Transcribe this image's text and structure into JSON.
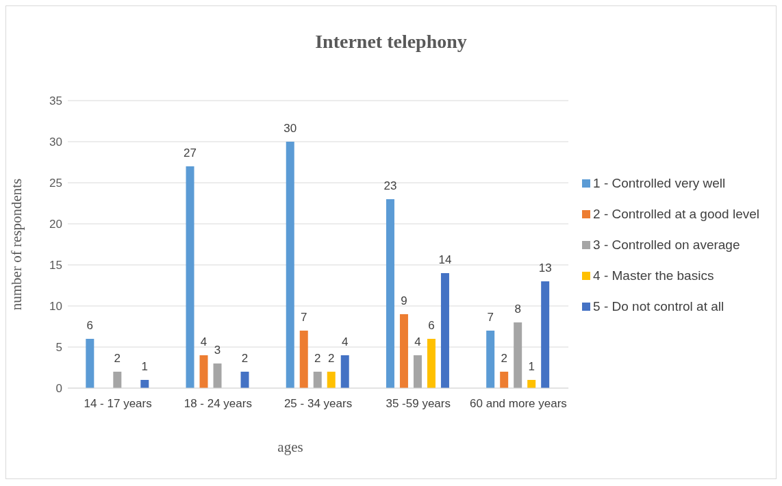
{
  "chart_data": {
    "type": "bar",
    "title": "Internet telephony",
    "xlabel": "ages",
    "ylabel": "number of respondents",
    "categories": [
      "14 - 17 years",
      "18 - 24 years",
      "25 - 34 years",
      "35 -59 years",
      "60 and more years"
    ],
    "series": [
      {
        "name": "1 - Controlled very well",
        "color": "#5b9bd5",
        "values": [
          6,
          27,
          30,
          23,
          7
        ]
      },
      {
        "name": "2 - Controlled at a good level",
        "color": "#ed7d31",
        "values": [
          null,
          4,
          7,
          9,
          2
        ]
      },
      {
        "name": "3 - Controlled on average",
        "color": "#a5a5a5",
        "values": [
          2,
          3,
          2,
          4,
          8
        ]
      },
      {
        "name": "4 - Master the basics",
        "color": "#ffc000",
        "values": [
          null,
          null,
          2,
          6,
          1
        ]
      },
      {
        "name": "5 - Do not control at all",
        "color": "#4472c4",
        "values": [
          1,
          2,
          4,
          14,
          13
        ]
      }
    ],
    "ylim": [
      0,
      35
    ],
    "yticks": [
      0,
      5,
      10,
      15,
      20,
      25,
      30,
      35
    ],
    "grid": "y",
    "legend": "right",
    "data_labels": true
  }
}
